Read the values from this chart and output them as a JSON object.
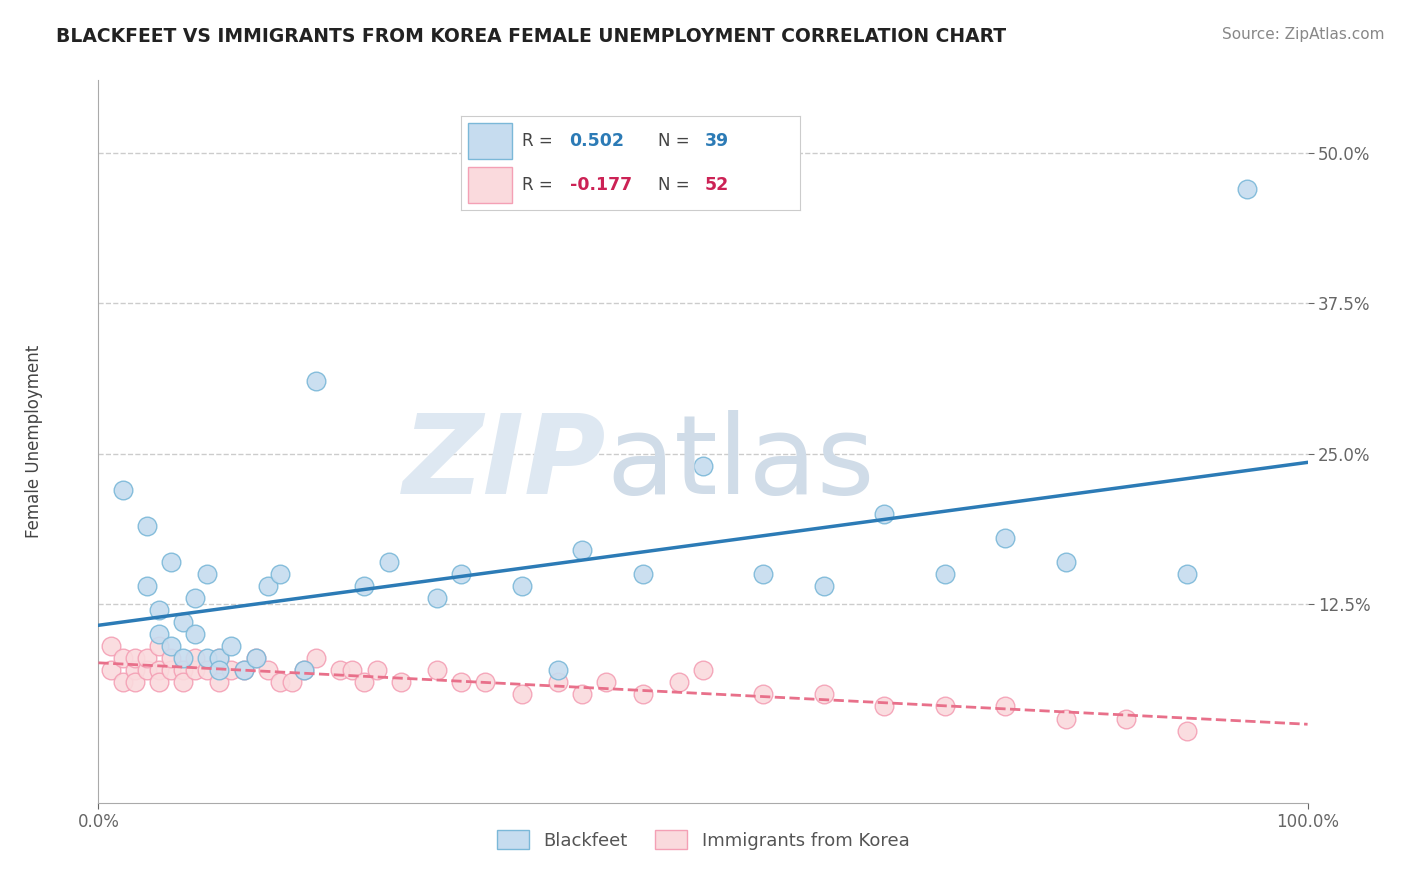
{
  "title": "BLACKFEET VS IMMIGRANTS FROM KOREA FEMALE UNEMPLOYMENT CORRELATION CHART",
  "source": "Source: ZipAtlas.com",
  "ylabel": "Female Unemployment",
  "x_min": 0.0,
  "x_max": 1.0,
  "y_min": -0.04,
  "y_max": 0.56,
  "blue_scatter_face": "#C6DCEF",
  "blue_scatter_edge": "#7BB8D8",
  "pink_scatter_face": "#FADADD",
  "pink_scatter_edge": "#F4A0B5",
  "blue_line_color": "#2C7BB6",
  "pink_line_color": "#E8708A",
  "grid_color": "#CCCCCC",
  "blackfeet_x": [
    0.02,
    0.04,
    0.04,
    0.05,
    0.05,
    0.06,
    0.06,
    0.07,
    0.07,
    0.08,
    0.08,
    0.09,
    0.09,
    0.1,
    0.1,
    0.11,
    0.12,
    0.13,
    0.14,
    0.15,
    0.17,
    0.18,
    0.22,
    0.24,
    0.28,
    0.3,
    0.35,
    0.38,
    0.4,
    0.45,
    0.5,
    0.55,
    0.6,
    0.65,
    0.7,
    0.75,
    0.8,
    0.9,
    0.95
  ],
  "blackfeet_y": [
    0.22,
    0.19,
    0.14,
    0.12,
    0.1,
    0.09,
    0.16,
    0.08,
    0.11,
    0.13,
    0.1,
    0.15,
    0.08,
    0.08,
    0.07,
    0.09,
    0.07,
    0.08,
    0.14,
    0.15,
    0.07,
    0.31,
    0.14,
    0.16,
    0.13,
    0.15,
    0.14,
    0.07,
    0.17,
    0.15,
    0.24,
    0.15,
    0.14,
    0.2,
    0.15,
    0.18,
    0.16,
    0.15,
    0.47
  ],
  "korea_x": [
    0.01,
    0.01,
    0.02,
    0.02,
    0.03,
    0.03,
    0.03,
    0.04,
    0.04,
    0.05,
    0.05,
    0.05,
    0.06,
    0.06,
    0.07,
    0.07,
    0.08,
    0.08,
    0.09,
    0.1,
    0.1,
    0.11,
    0.12,
    0.13,
    0.14,
    0.15,
    0.16,
    0.17,
    0.18,
    0.2,
    0.21,
    0.22,
    0.23,
    0.25,
    0.28,
    0.3,
    0.32,
    0.35,
    0.38,
    0.4,
    0.42,
    0.45,
    0.48,
    0.5,
    0.55,
    0.6,
    0.65,
    0.7,
    0.75,
    0.8,
    0.85,
    0.9
  ],
  "korea_y": [
    0.07,
    0.09,
    0.06,
    0.08,
    0.07,
    0.08,
    0.06,
    0.07,
    0.08,
    0.07,
    0.06,
    0.09,
    0.07,
    0.08,
    0.07,
    0.06,
    0.07,
    0.08,
    0.07,
    0.06,
    0.08,
    0.07,
    0.07,
    0.08,
    0.07,
    0.06,
    0.06,
    0.07,
    0.08,
    0.07,
    0.07,
    0.06,
    0.07,
    0.06,
    0.07,
    0.06,
    0.06,
    0.05,
    0.06,
    0.05,
    0.06,
    0.05,
    0.06,
    0.07,
    0.05,
    0.05,
    0.04,
    0.04,
    0.04,
    0.03,
    0.03,
    0.02
  ]
}
